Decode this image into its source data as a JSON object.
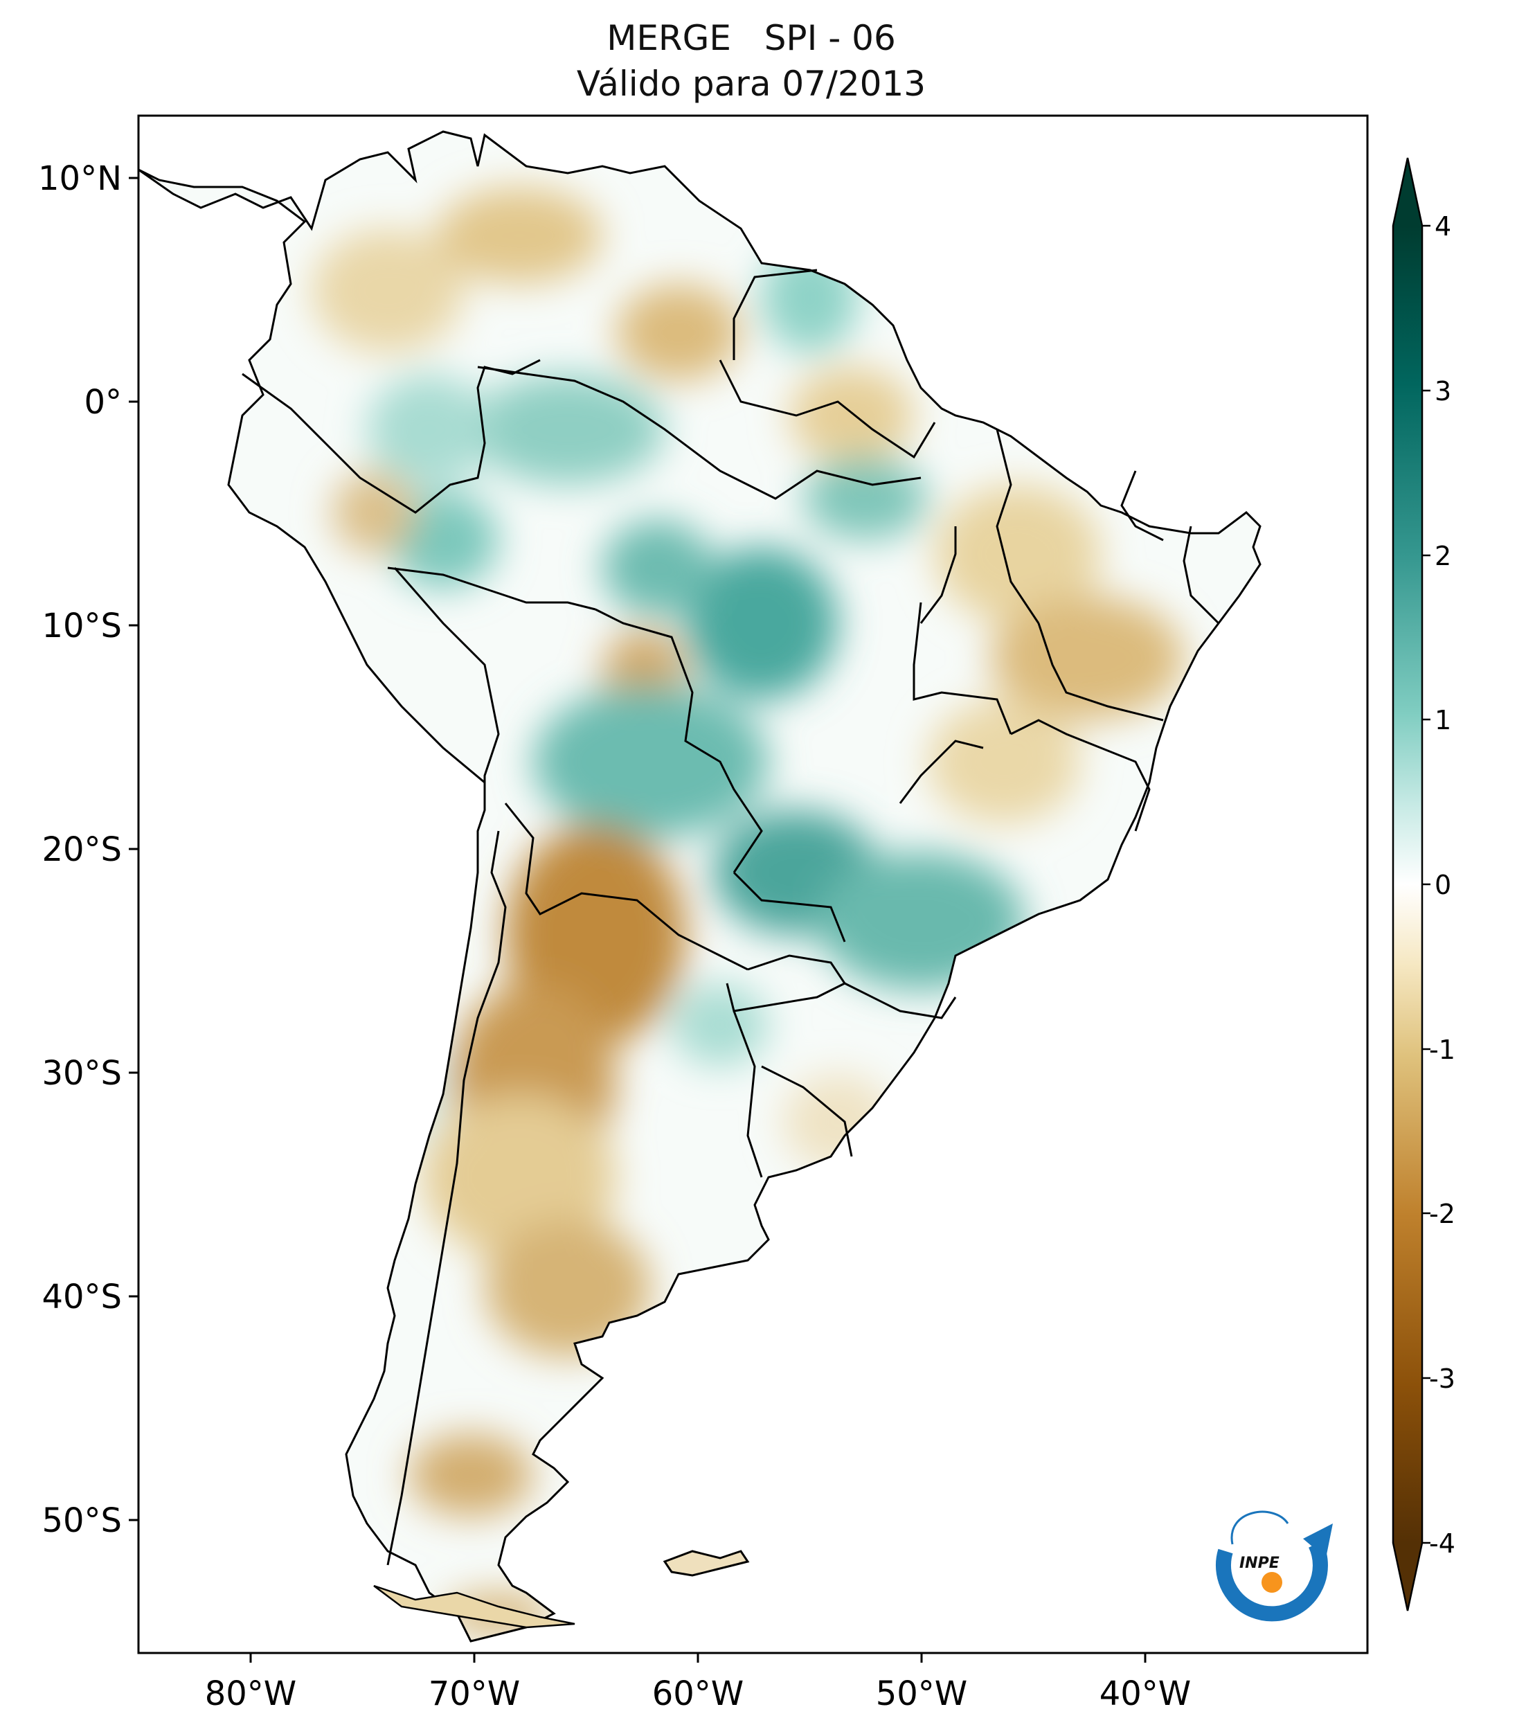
{
  "title": {
    "line1": "MERGE   SPI - 06",
    "line2": "Válido para 07/2013"
  },
  "axes": {
    "latitude_labels": [
      "10°N",
      "0°",
      "10°S",
      "20°S",
      "30°S",
      "40°S",
      "50°S"
    ],
    "longitude_labels": [
      "80°W",
      "70°W",
      "60°W",
      "50°W",
      "40°W"
    ]
  },
  "colorbar": {
    "tick_labels": [
      "4",
      "3",
      "2",
      "1",
      "0",
      "-1",
      "-2",
      "-3",
      "-4"
    ],
    "range": [
      -4,
      4
    ],
    "colors": {
      "max": "#003c30",
      "high": "#01665e",
      "mid_high": "#35978f",
      "low_high": "#80cdc1",
      "pale_high": "#c7eae5",
      "zero": "#ffffff",
      "pale_low": "#f6e8c3",
      "low_low": "#dfc27d",
      "mid_low": "#bf812d",
      "low": "#8c510a",
      "min": "#543005"
    }
  },
  "logo": {
    "text": "INPE",
    "colors": {
      "arc": "#1a75bc",
      "dot": "#f7941d"
    }
  }
}
